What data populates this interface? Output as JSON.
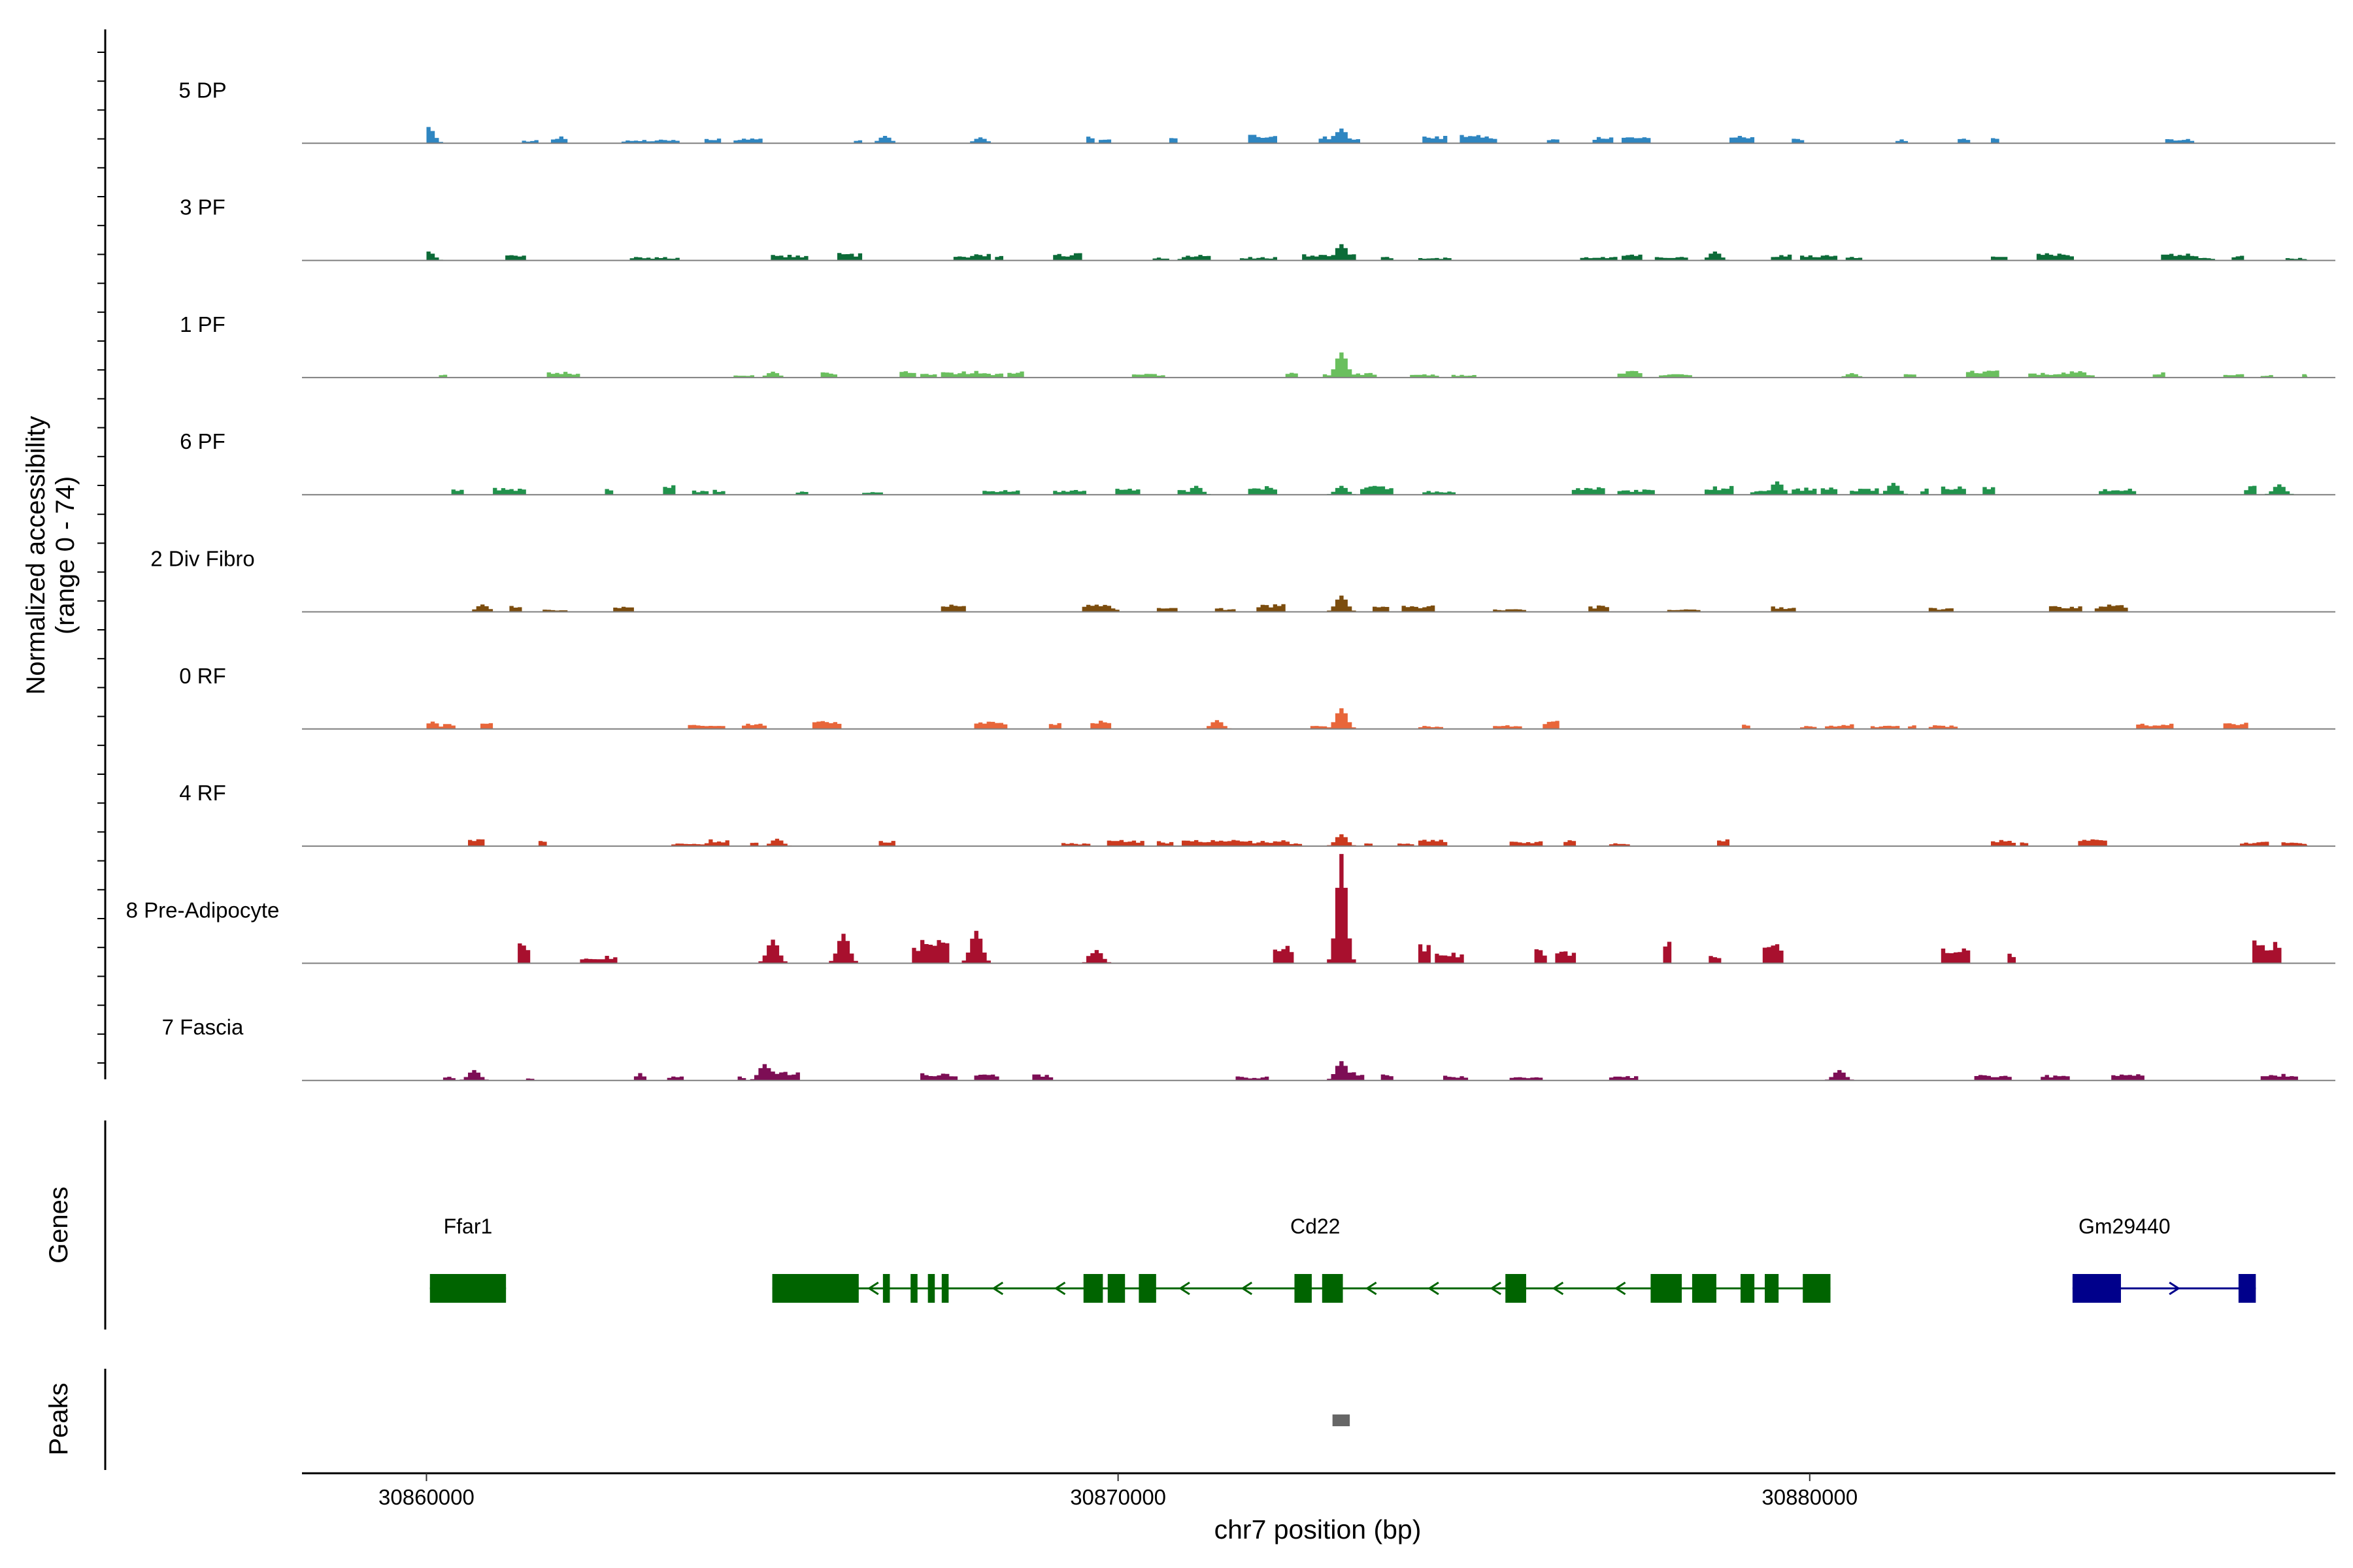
{
  "chart_data": {
    "type": "area",
    "ylabel_line1": "Normalized accessibility",
    "ylabel_line2": "(range 0 - 74)",
    "xlabel": "chr7 position (bp)",
    "xlim": [
      30858200,
      30887600
    ],
    "ylim": [
      0,
      74
    ],
    "x_ticks": [
      {
        "value": 30860000,
        "label": "30860000"
      },
      {
        "value": 30870000,
        "label": "30870000"
      },
      {
        "value": 30880000,
        "label": "30880000"
      }
    ],
    "tracks_label": "",
    "series": [
      {
        "name": "5 DP",
        "color": "#2f86c1",
        "seed": 11,
        "density": 0.5,
        "base": 3.5,
        "peaks": [
          [
            30860050,
            11
          ],
          [
            30873250,
            10
          ],
          [
            30866600,
            5
          ],
          [
            30868000,
            4
          ]
        ]
      },
      {
        "name": "3 PF",
        "color": "#0c6b38",
        "seed": 23,
        "density": 0.55,
        "base": 3.5,
        "peaks": [
          [
            30860050,
            6
          ],
          [
            30873250,
            11
          ],
          [
            30878600,
            6
          ],
          [
            30871000,
            3
          ]
        ]
      },
      {
        "name": "1 PF",
        "color": "#6abf5e",
        "seed": 37,
        "density": 0.6,
        "base": 3,
        "peaks": [
          [
            30873250,
            17
          ],
          [
            30865000,
            4
          ],
          [
            30880600,
            3
          ]
        ]
      },
      {
        "name": "6 PF",
        "color": "#21924c",
        "seed": 41,
        "density": 0.7,
        "base": 4,
        "peaks": [
          [
            30879500,
            9
          ],
          [
            30881200,
            8
          ],
          [
            30886800,
            7
          ],
          [
            30871100,
            6
          ],
          [
            30873250,
            6
          ]
        ]
      },
      {
        "name": "2 Div Fibro",
        "color": "#7c4d0e",
        "seed": 53,
        "density": 0.6,
        "base": 3.5,
        "peaks": [
          [
            30873250,
            11
          ],
          [
            30860800,
            5
          ],
          [
            30884400,
            4
          ]
        ]
      },
      {
        "name": "0 RF",
        "color": "#e8663a",
        "seed": 61,
        "density": 0.55,
        "base": 3.5,
        "peaks": [
          [
            30873250,
            14
          ],
          [
            30871400,
            6
          ],
          [
            30860100,
            5
          ]
        ]
      },
      {
        "name": "4 RF",
        "color": "#cb3a1f",
        "seed": 71,
        "density": 0.55,
        "base": 3.5,
        "peaks": [
          [
            30873250,
            8
          ],
          [
            30865050,
            5
          ],
          [
            30872400,
            4
          ]
        ]
      },
      {
        "name": "8 Pre-Adipocyte",
        "color": "#a8102e",
        "seed": 83,
        "density": 0.25,
        "base": 10,
        "peaks": [
          [
            30873250,
            74
          ],
          [
            30867950,
            22
          ],
          [
            30866000,
            20
          ],
          [
            30865000,
            16
          ],
          [
            30869700,
            9
          ]
        ]
      },
      {
        "name": "7 Fascia",
        "color": "#7d0e55",
        "seed": 97,
        "density": 0.55,
        "base": 4,
        "peaks": [
          [
            30864900,
            11
          ],
          [
            30873250,
            13
          ],
          [
            30880400,
            7
          ],
          [
            30860700,
            7
          ]
        ]
      }
    ],
    "genes": {
      "label": "Genes",
      "items": [
        {
          "name": "Ffar1",
          "label_x": 30860600,
          "color": "#006400",
          "strand": "-",
          "start": 30860050,
          "end": 30861150,
          "exons": [
            [
              30860050,
              30861150
            ]
          ]
        },
        {
          "name": "Cd22",
          "label_x": 30872850,
          "color": "#006400",
          "strand": "-",
          "start": 30865000,
          "end": 30880300,
          "exons": [
            [
              30865000,
              30866250
            ],
            [
              30866600,
              30866700
            ],
            [
              30867000,
              30867100
            ],
            [
              30867250,
              30867350
            ],
            [
              30867450,
              30867550
            ],
            [
              30869500,
              30869780
            ],
            [
              30869850,
              30870100
            ],
            [
              30870300,
              30870550
            ],
            [
              30872550,
              30872800
            ],
            [
              30872950,
              30873250
            ],
            [
              30875600,
              30875900
            ],
            [
              30877700,
              30878150
            ],
            [
              30878300,
              30878650
            ],
            [
              30879000,
              30879200
            ],
            [
              30879350,
              30879550
            ],
            [
              30879900,
              30880300
            ]
          ]
        },
        {
          "name": "Gm29440",
          "label_x": 30884550,
          "color": "#00008b",
          "strand": "+",
          "start": 30883800,
          "end": 30886450,
          "exons": [
            [
              30883800,
              30884500
            ],
            [
              30886200,
              30886450
            ]
          ]
        }
      ]
    },
    "peaks": {
      "label": "Peaks",
      "color": "#666666",
      "items": [
        [
          30873100,
          30873350
        ]
      ]
    }
  }
}
